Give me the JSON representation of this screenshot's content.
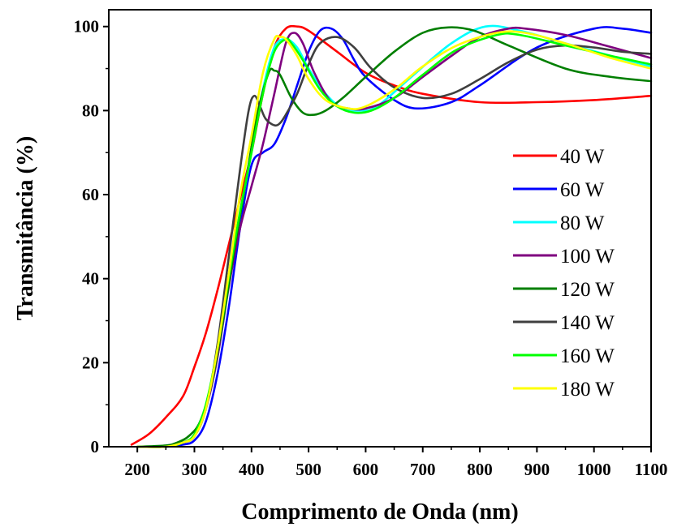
{
  "chart_data": {
    "type": "line",
    "xlabel": "Comprimento de Onda (nm)",
    "ylabel": "Transmitância (%)",
    "xlim": [
      150,
      1100
    ],
    "ylim": [
      0,
      104
    ],
    "xticks": [
      200,
      300,
      400,
      500,
      600,
      700,
      800,
      900,
      1000,
      1100
    ],
    "xtick_labels": [
      "200",
      "300",
      "400",
      "500",
      "600",
      "700",
      "800",
      "900",
      "1000",
      "1100"
    ],
    "yticks": [
      0,
      20,
      40,
      60,
      80,
      100
    ],
    "ytick_labels": [
      "0",
      "20",
      "40",
      "60",
      "80",
      "100"
    ],
    "grid": false,
    "legend_position": "right",
    "series": [
      {
        "name": "40 W",
        "color": "#ff0000",
        "x": [
          190,
          220,
          250,
          280,
          300,
          320,
          340,
          360,
          380,
          400,
          420,
          440,
          460,
          480,
          500,
          550,
          600,
          650,
          700,
          800,
          900,
          1000,
          1100
        ],
        "y": [
          0.5,
          3,
          7,
          12,
          19,
          27,
          37,
          48,
          59,
          70,
          84,
          95,
          99.5,
          100,
          99,
          94,
          89,
          86,
          84,
          82,
          82,
          82.5,
          83.5
        ]
      },
      {
        "name": "60 W",
        "color": "#0000ff",
        "x": [
          200,
          250,
          280,
          300,
          320,
          340,
          360,
          380,
          400,
          420,
          440,
          460,
          480,
          500,
          520,
          540,
          560,
          580,
          600,
          650,
          690,
          750,
          800,
          900,
          1000,
          1050,
          1100
        ],
        "y": [
          0,
          0,
          0.5,
          1.5,
          6,
          17,
          33,
          52,
          67,
          70,
          72,
          78,
          86,
          94,
          99,
          99.5,
          97,
          92,
          88,
          82.5,
          80.5,
          82,
          86,
          95,
          99.5,
          99.5,
          98.5
        ]
      },
      {
        "name": "80 W",
        "color": "#00ffff",
        "x": [
          200,
          250,
          280,
          300,
          320,
          340,
          360,
          380,
          400,
          420,
          440,
          460,
          480,
          500,
          530,
          560,
          590,
          620,
          680,
          750,
          810,
          870,
          950,
          1030,
          1100
        ],
        "y": [
          0,
          0,
          1,
          2.5,
          9,
          21,
          38,
          55,
          70,
          85,
          95,
          97,
          95,
          90,
          84,
          80.5,
          80,
          81,
          88,
          96,
          100,
          99,
          96,
          93,
          90.5
        ]
      },
      {
        "name": "100 W",
        "color": "#7f007f",
        "x": [
          200,
          250,
          280,
          300,
          320,
          340,
          360,
          380,
          400,
          420,
          440,
          460,
          475,
          490,
          510,
          540,
          570,
          600,
          650,
          700,
          750,
          800,
          850,
          880,
          950,
          1020,
          1100
        ],
        "y": [
          0,
          0,
          1,
          2.5,
          9,
          21,
          38,
          52,
          62,
          72,
          84,
          96,
          98.5,
          96,
          89,
          82,
          80.5,
          80.5,
          83,
          88,
          93,
          97.5,
          99.5,
          99.5,
          98,
          95.5,
          92.5
        ]
      },
      {
        "name": "120 W",
        "color": "#007f00",
        "x": [
          200,
          250,
          270,
          290,
          310,
          330,
          350,
          370,
          390,
          410,
          430,
          440,
          450,
          470,
          490,
          510,
          530,
          560,
          600,
          650,
          700,
          745,
          790,
          850,
          950,
          1030,
          1100
        ],
        "y": [
          0,
          0.3,
          1,
          2.5,
          6,
          15,
          30,
          47,
          63,
          79,
          89,
          89.5,
          88.5,
          83,
          79.5,
          79,
          80,
          83,
          88,
          94,
          98.5,
          99.8,
          99,
          95.5,
          90,
          88,
          87
        ]
      },
      {
        "name": "140 W",
        "color": "#3f3f3f",
        "x": [
          200,
          250,
          280,
          300,
          320,
          340,
          360,
          380,
          395,
          405,
          415,
          425,
          440,
          450,
          460,
          480,
          500,
          520,
          550,
          580,
          610,
          650,
          700,
          750,
          800,
          850,
          900,
          950,
          1000,
          1050,
          1100
        ],
        "y": [
          0,
          0,
          1,
          2.5,
          9,
          24,
          45,
          66,
          80,
          83.5,
          81,
          78,
          76.5,
          77,
          79,
          84,
          91,
          96,
          97.5,
          95,
          90,
          85.5,
          83,
          84,
          87.5,
          91.5,
          94.5,
          95.5,
          95,
          94,
          93.5
        ]
      },
      {
        "name": "160 W",
        "color": "#00ff00",
        "x": [
          200,
          250,
          280,
          300,
          320,
          340,
          360,
          380,
          400,
          420,
          440,
          460,
          470,
          490,
          520,
          550,
          580,
          610,
          650,
          700,
          760,
          830,
          870,
          950,
          1030,
          1100
        ],
        "y": [
          0,
          0,
          1,
          3,
          10,
          23,
          40,
          56,
          70,
          84,
          94,
          97,
          96,
          92,
          85,
          81,
          79.5,
          80,
          83,
          88.5,
          94.5,
          98,
          98,
          95.5,
          93,
          91
        ]
      },
      {
        "name": "180 W",
        "color": "#ffff00",
        "x": [
          200,
          250,
          280,
          300,
          320,
          340,
          360,
          380,
          400,
          420,
          440,
          450,
          460,
          480,
          500,
          530,
          570,
          600,
          650,
          700,
          760,
          830,
          880,
          950,
          1030,
          1100
        ],
        "y": [
          0,
          0,
          1,
          2.5,
          9,
          23,
          41,
          60,
          74,
          89,
          97,
          97.5,
          97,
          93,
          87.5,
          82.5,
          80.5,
          81,
          85,
          90.5,
          95.5,
          98.5,
          98.5,
          96,
          92.5,
          90
        ]
      }
    ]
  }
}
